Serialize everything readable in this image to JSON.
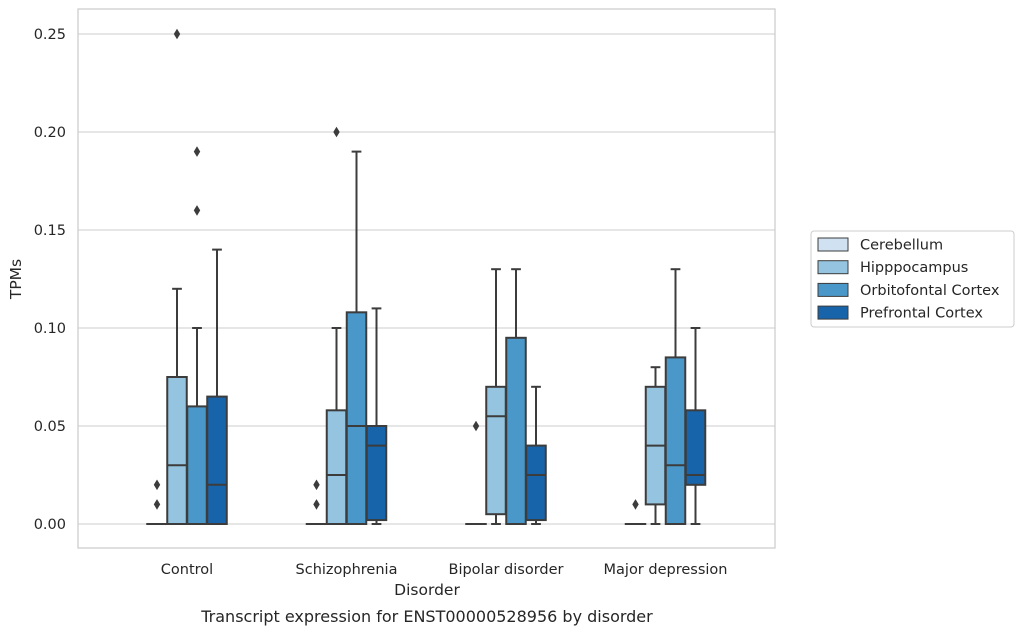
{
  "chart_data": {
    "type": "box",
    "caption": "Transcript expression for ENST00000528956 by disorder",
    "xlabel": "Disorder",
    "ylabel": "TPMs",
    "ylim": [
      -0.012,
      0.2635
    ],
    "yticks": [
      0.0,
      0.05,
      0.1,
      0.15,
      0.2,
      0.25
    ],
    "ytick_labels": [
      "0.00",
      "0.05",
      "0.10",
      "0.15",
      "0.20",
      "0.25"
    ],
    "grid": "horizontal",
    "legend_position": "right",
    "categories": [
      "Control",
      "Schizophrenia",
      "Bipolar disorder",
      "Major depression"
    ],
    "series": [
      {
        "name": "Cerebellum",
        "color": "#d0e1f2",
        "boxes": [
          {
            "whislo": 0.0,
            "q1": 0.0,
            "med": 0.0,
            "q3": 0.0,
            "whishi": 0.0,
            "fliers": [
              0.02,
              0.01
            ]
          },
          {
            "whislo": 0.0,
            "q1": 0.0,
            "med": 0.0,
            "q3": 0.0,
            "whishi": 0.0,
            "fliers": [
              0.02,
              0.01
            ]
          },
          {
            "whislo": 0.0,
            "q1": 0.0,
            "med": 0.0,
            "q3": 0.0,
            "whishi": 0.0,
            "fliers": [
              0.05
            ]
          },
          {
            "whislo": 0.0,
            "q1": 0.0,
            "med": 0.0,
            "q3": 0.0,
            "whishi": 0.0,
            "fliers": [
              0.01
            ]
          }
        ]
      },
      {
        "name": "Hipppocampus",
        "color": "#94c4df",
        "boxes": [
          {
            "whislo": 0.0,
            "q1": 0.0,
            "med": 0.03,
            "q3": 0.075,
            "whishi": 0.12,
            "fliers": [
              0.25
            ]
          },
          {
            "whislo": 0.0,
            "q1": 0.0,
            "med": 0.025,
            "q3": 0.058,
            "whishi": 0.1,
            "fliers": [
              0.2
            ]
          },
          {
            "whislo": 0.0,
            "q1": 0.005,
            "med": 0.055,
            "q3": 0.07,
            "whishi": 0.13,
            "fliers": []
          },
          {
            "whislo": 0.0,
            "q1": 0.01,
            "med": 0.04,
            "q3": 0.07,
            "whishi": 0.08,
            "fliers": []
          }
        ]
      },
      {
        "name": "Orbitofontal Cortex",
        "color": "#4a98c9",
        "boxes": [
          {
            "whislo": 0.0,
            "q1": 0.0,
            "med": 0.0,
            "q3": 0.06,
            "whishi": 0.1,
            "fliers": [
              0.19,
              0.16
            ]
          },
          {
            "whislo": 0.0,
            "q1": 0.0,
            "med": 0.05,
            "q3": 0.108,
            "whishi": 0.19,
            "fliers": []
          },
          {
            "whislo": 0.0,
            "q1": 0.0,
            "med": 0.0,
            "q3": 0.095,
            "whishi": 0.13,
            "fliers": []
          },
          {
            "whislo": 0.0,
            "q1": 0.0,
            "med": 0.03,
            "q3": 0.085,
            "whishi": 0.13,
            "fliers": []
          }
        ]
      },
      {
        "name": "Prefrontal Cortex",
        "color": "#1764ab",
        "boxes": [
          {
            "whislo": 0.0,
            "q1": 0.0,
            "med": 0.02,
            "q3": 0.065,
            "whishi": 0.14,
            "fliers": []
          },
          {
            "whislo": 0.0,
            "q1": 0.002,
            "med": 0.04,
            "q3": 0.05,
            "whishi": 0.11,
            "fliers": []
          },
          {
            "whislo": 0.0,
            "q1": 0.002,
            "med": 0.025,
            "q3": 0.04,
            "whishi": 0.07,
            "fliers": []
          },
          {
            "whislo": 0.0,
            "q1": 0.02,
            "med": 0.025,
            "q3": 0.058,
            "whishi": 0.1,
            "fliers": []
          }
        ]
      }
    ]
  }
}
